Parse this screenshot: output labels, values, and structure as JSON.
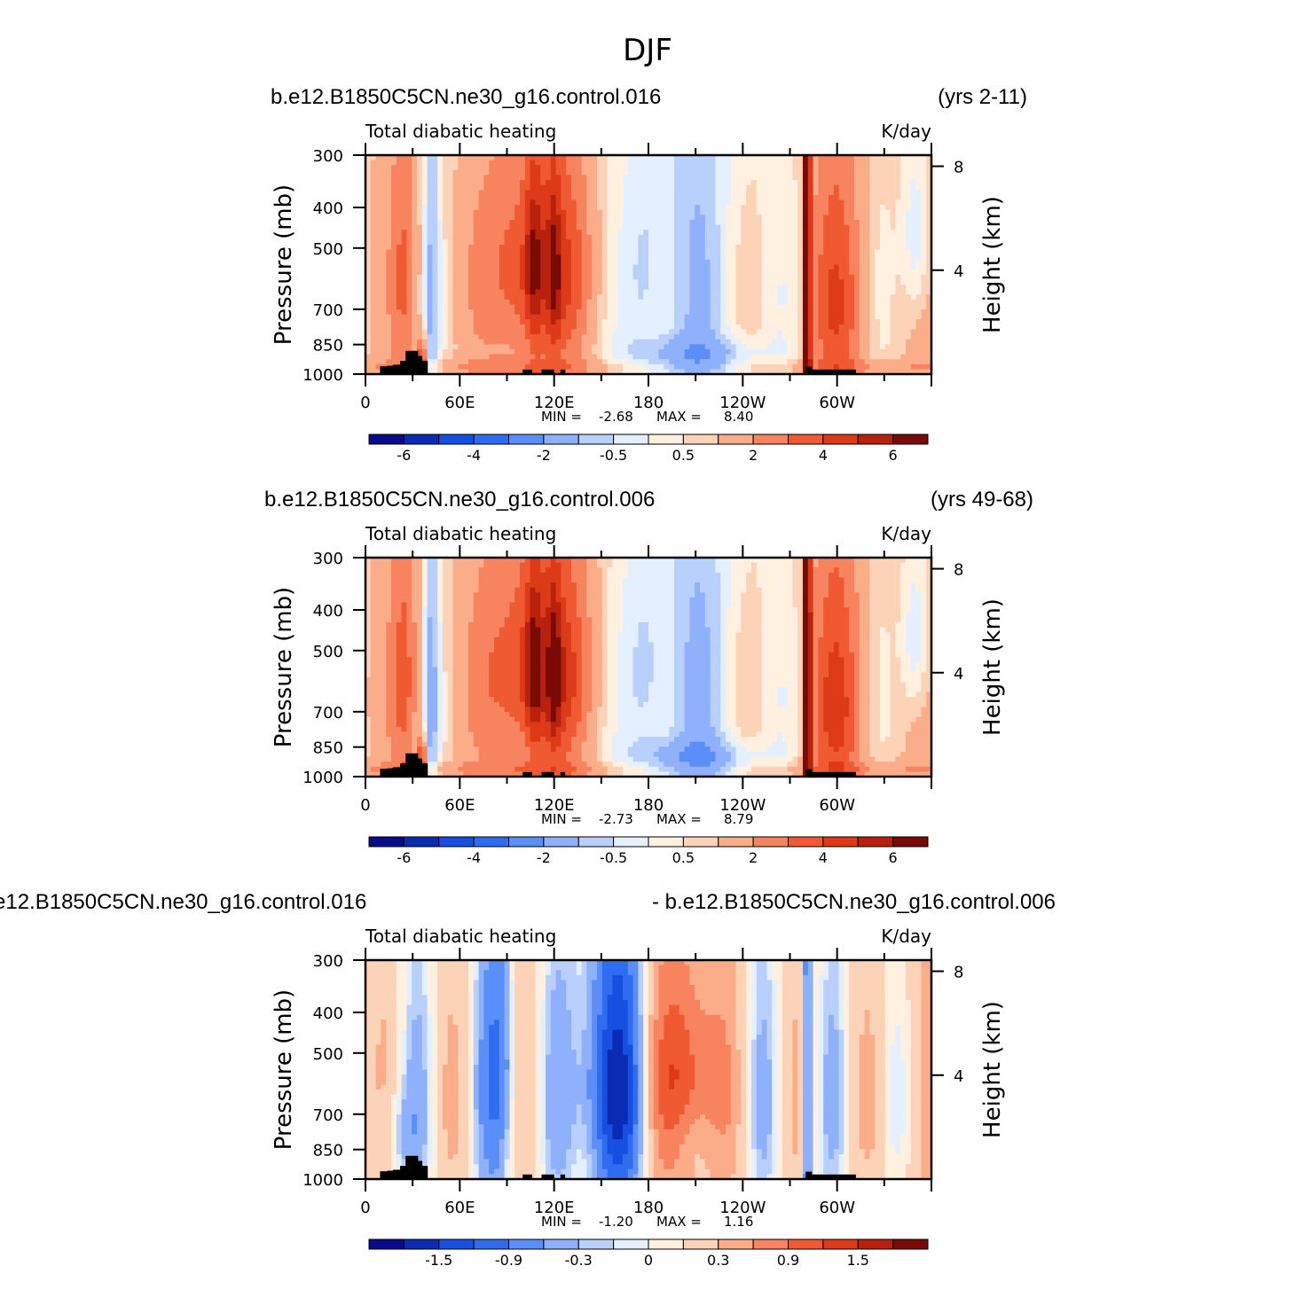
{
  "page_title": "DJF",
  "colorbar_colors": [
    "#0a0a8c",
    "#0c2bb4",
    "#1550e0",
    "#2f6df0",
    "#5a8ef8",
    "#8fb1fb",
    "#b9d0fd",
    "#e4efff",
    "#fff0e0",
    "#fdd3b8",
    "#fbac88",
    "#f7845f",
    "#f05a32",
    "#dc3a18",
    "#b8220c",
    "#7a0a06"
  ],
  "chart_data": [
    {
      "type": "heatmap",
      "left_title": "b.e12.B1850C5CN.ne30_g16.control.016",
      "right_title": "(yrs 2-11)",
      "subtitle": "Total diabatic heating",
      "units": "K/day",
      "ylabel": "Pressure (mb)",
      "ylabel_right": "Height (km)",
      "x_ticks": [
        "0",
        "60E",
        "120E",
        "180",
        "120W",
        "60W"
      ],
      "y_ticks": [
        "300",
        "400",
        "500",
        "700",
        "850",
        "1000"
      ],
      "y_ticks_right": [
        "8",
        "4"
      ],
      "min_label": "MIN =",
      "min_value": "-2.68",
      "max_label": "MAX =",
      "max_value": "8.40",
      "colorbar_labels": [
        "-6",
        "-4",
        "-2",
        "-0.5",
        "0.5",
        "2",
        "4",
        "6"
      ],
      "field_scale": 1.0
    },
    {
      "type": "heatmap",
      "left_title": "b.e12.B1850C5CN.ne30_g16.control.006",
      "right_title": "(yrs 49-68)",
      "subtitle": "Total diabatic heating",
      "units": "K/day",
      "ylabel": "Pressure (mb)",
      "ylabel_right": "Height (km)",
      "x_ticks": [
        "0",
        "60E",
        "120E",
        "180",
        "120W",
        "60W"
      ],
      "y_ticks": [
        "300",
        "400",
        "500",
        "700",
        "850",
        "1000"
      ],
      "y_ticks_right": [
        "8",
        "4"
      ],
      "min_label": "MIN =",
      "min_value": "-2.73",
      "max_label": "MAX =",
      "max_value": "8.79",
      "colorbar_labels": [
        "-6",
        "-4",
        "-2",
        "-0.5",
        "0.5",
        "2",
        "4",
        "6"
      ],
      "field_scale": 1.08
    },
    {
      "type": "heatmap",
      "left_title": "e12.B1850C5CN.ne30_g16.control.016",
      "right_title": "- b.e12.B1850C5CN.ne30_g16.control.006",
      "subtitle": "Total diabatic heating",
      "units": "K/day",
      "ylabel": "Pressure (mb)",
      "ylabel_right": "Height (km)",
      "x_ticks": [
        "0",
        "60E",
        "120E",
        "180",
        "120W",
        "60W"
      ],
      "y_ticks": [
        "300",
        "400",
        "500",
        "700",
        "850",
        "1000"
      ],
      "y_ticks_right": [
        "8",
        "4"
      ],
      "min_label": "MIN =",
      "min_value": "-1.20",
      "max_label": "MAX =",
      "max_value": "1.16",
      "colorbar_labels": [
        "-1.5",
        "-0.9",
        "-0.3",
        "0",
        "0.3",
        "0.9",
        "1.5"
      ],
      "field_scale": 1.0
    }
  ]
}
